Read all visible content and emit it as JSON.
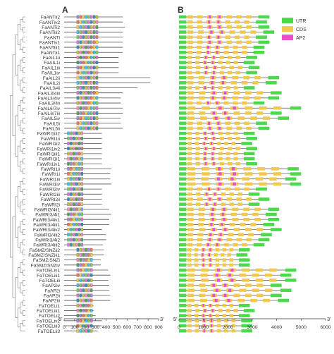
{
  "panels": {
    "a_label": "A",
    "b_label": "B"
  },
  "ends": {
    "five_prime": "5'",
    "three_prime": "3'"
  },
  "legend": [
    {
      "label": "UTR",
      "color": "#4cd94c"
    },
    {
      "label": "CDS",
      "color": "#f2c94c"
    },
    {
      "label": "AP2",
      "color": "#e84fc8"
    }
  ],
  "colors": {
    "intron": "#555555",
    "tree": "#7a7a7a",
    "text": "#333333",
    "motif_palette": [
      "#9c8fd6",
      "#e87b5a",
      "#f2c94c",
      "#4cc0e0",
      "#7cc96b",
      "#d97bd0",
      "#3a8fbf",
      "#c0c04c",
      "#f28fb0",
      "#5aa05a"
    ]
  },
  "genes": [
    "FaANTii2",
    "FaANTiv2",
    "FaANTi2",
    "FaANTiii2",
    "FaANTi",
    "FaANTiv1",
    "FaANTiii1",
    "FaANTii1",
    "FaAIL1ii",
    "FaAIL1i",
    "FaAIL1iii",
    "FaAIL1iv",
    "FaAIL2ii",
    "FaAIL2i",
    "FaAIL3/4i",
    "FaAIL3/4iii",
    "FaAIL3/4iv",
    "FaAIL3/4ii",
    "FaAIL6/7iv",
    "FaAIL6/7iii",
    "FaAIL5iv",
    "FaAIL5i",
    "FaAIL5ii",
    "FaWRI1iii2",
    "FaWRI1ii",
    "FaWRI1i2",
    "FaWRI1iv2",
    "FaWRI1iii1",
    "FaWRI1i1",
    "FaWRI1iv1",
    "FaWRI1ii",
    "FaWRI1i",
    "FaWRI1iii",
    "FaWRI1iv",
    "FaWRI2iv",
    "FaWRI2iii",
    "FaWRI2ii",
    "FaWRI2i",
    "FaWRI3/4ii1",
    "FaWRI3/4i1",
    "FaWRI3/4iv1",
    "FaWRI3/4iii1",
    "FaWRI3/4iv2",
    "FaWRI3/4ii2",
    "FaWRI3/4i2",
    "FaWRI3/4iii2",
    "FaSMZ/SNZii2",
    "FaSMZ/SNZiii1",
    "FaSMZ/SNZi",
    "FaSMZ/SNZiv",
    "FaTOELiv1",
    "FaTOELiii1",
    "FaTOELiii",
    "FaAP2iv",
    "FaAP2i",
    "FaAP2ii",
    "FaAP2iii",
    "FaTOELi1",
    "FaTOELiii1",
    "FaTOELi2",
    "FaTOELiv2",
    "FaTOELiii3",
    "FaTOELii3"
  ],
  "protein_axis": {
    "ticks": [
      "0",
      "100",
      "200",
      "300",
      "400",
      "500",
      "600",
      "700",
      "800",
      "900"
    ],
    "max": 900
  },
  "gene_axis": {
    "ticks": [
      "0",
      "1000",
      "2000",
      "3000",
      "4000",
      "5000",
      "6000"
    ],
    "max": 6000
  },
  "protein_lengths": [
    560,
    560,
    580,
    560,
    560,
    560,
    560,
    560,
    520,
    520,
    520,
    520,
    820,
    820,
    700,
    560,
    540,
    540,
    560,
    560,
    540,
    540,
    560,
    360,
    360,
    360,
    360,
    360,
    360,
    360,
    450,
    440,
    440,
    450,
    360,
    360,
    360,
    360,
    430,
    450,
    430,
    430,
    360,
    400,
    400,
    370,
    380,
    380,
    350,
    350,
    420,
    440,
    420,
    430,
    430,
    440,
    440,
    280,
    280,
    300,
    360,
    360,
    320
  ],
  "gene_lengths": [
    3700,
    3600,
    3700,
    3900,
    3600,
    3700,
    3500,
    3500,
    3200,
    3100,
    3300,
    3200,
    4100,
    4000,
    3100,
    4200,
    4100,
    3500,
    5000,
    4200,
    4500,
    3600,
    3700,
    3100,
    3200,
    3000,
    3200,
    3100,
    3100,
    3200,
    4900,
    5000,
    4800,
    5000,
    3600,
    3300,
    3700,
    3300,
    4100,
    4000,
    4100,
    3900,
    4200,
    3800,
    3700,
    3500,
    2900,
    2800,
    2900,
    2900,
    4800,
    4600,
    4800,
    4200,
    4600,
    4200,
    4500,
    2900,
    3100,
    2900,
    3000,
    3000,
    3000
  ]
}
